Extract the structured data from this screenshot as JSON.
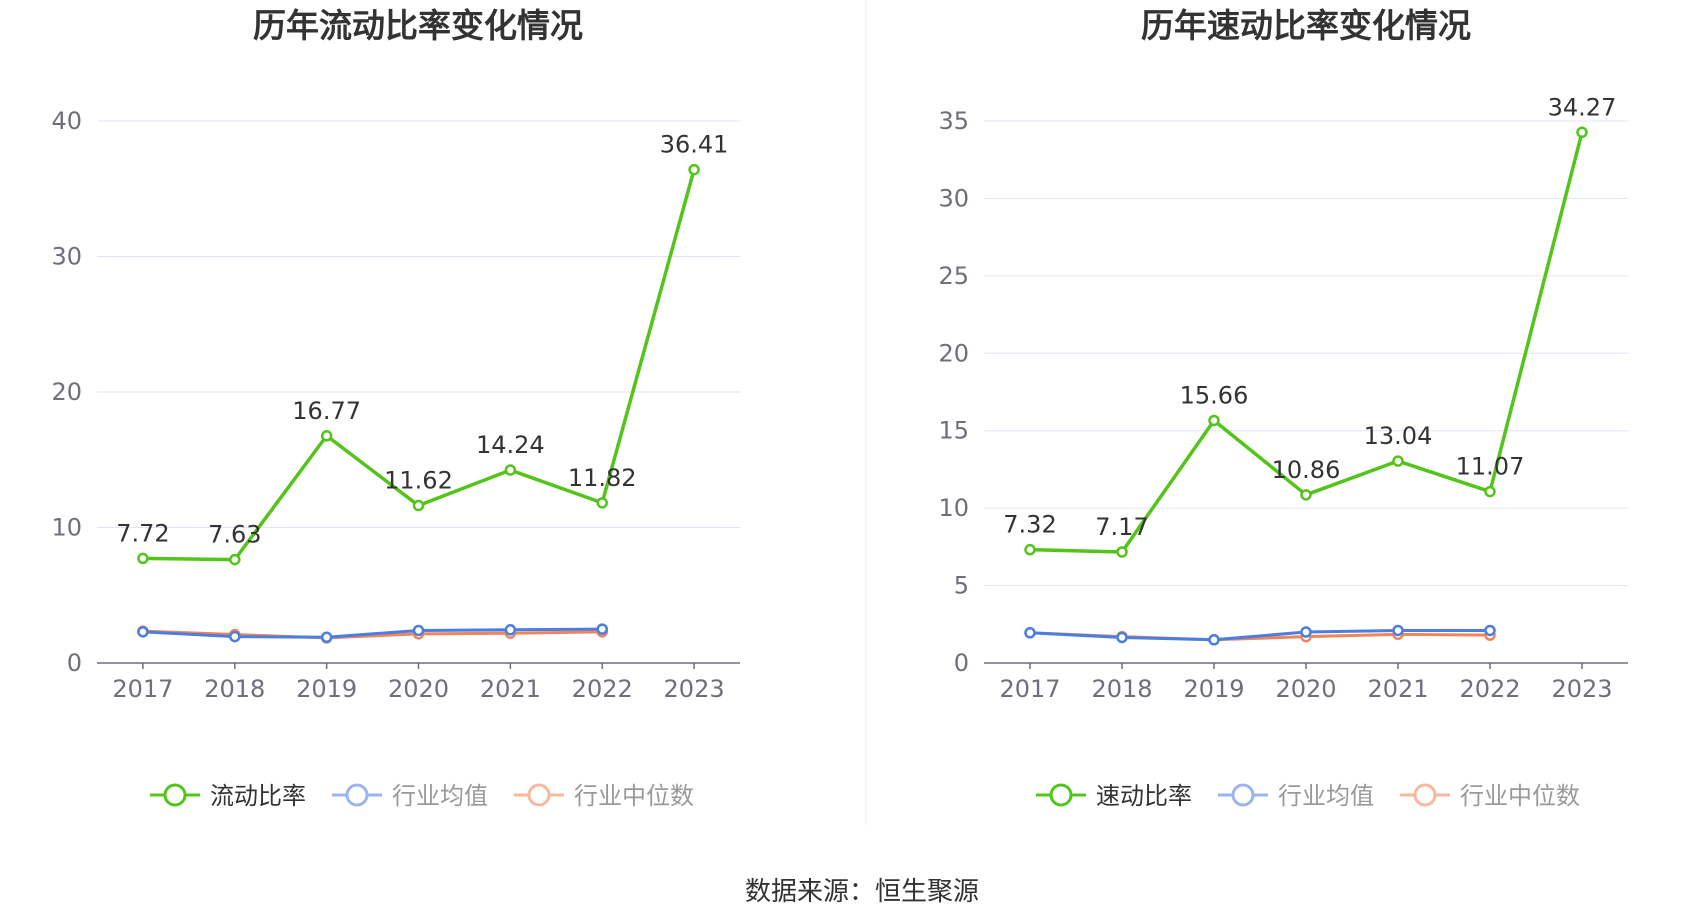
{
  "source": "数据来源：恒生聚源",
  "chart_data": [
    {
      "type": "line",
      "title": "历年流动比率变化情况",
      "categories": [
        "2017",
        "2018",
        "2019",
        "2020",
        "2021",
        "2022",
        "2023"
      ],
      "ylim": [
        0,
        40
      ],
      "yticks": [
        0,
        10,
        20,
        30,
        40
      ],
      "grid": true,
      "legend_position": "bottom-center",
      "series": [
        {
          "name": "流动比率",
          "color": "#52c41a",
          "values": [
            7.72,
            7.63,
            16.77,
            11.62,
            14.24,
            11.82,
            36.41
          ],
          "labels": [
            "7.72",
            "7.63",
            "16.77",
            "11.62",
            "14.24",
            "11.82",
            "36.41"
          ]
        },
        {
          "name": "行业均值",
          "color": "#4a7ee0",
          "values": [
            2.3,
            1.95,
            1.9,
            2.4,
            2.45,
            2.5,
            null
          ]
        },
        {
          "name": "行业中位数",
          "color": "#f2845c",
          "values": [
            2.35,
            2.1,
            1.85,
            2.15,
            2.2,
            2.3,
            null
          ]
        }
      ]
    },
    {
      "type": "line",
      "title": "历年速动比率变化情况",
      "categories": [
        "2017",
        "2018",
        "2019",
        "2020",
        "2021",
        "2022",
        "2023"
      ],
      "ylim": [
        0,
        35
      ],
      "yticks": [
        0,
        5,
        10,
        15,
        20,
        25,
        30,
        35
      ],
      "grid": true,
      "legend_position": "bottom-center",
      "series": [
        {
          "name": "速动比率",
          "color": "#52c41a",
          "values": [
            7.32,
            7.17,
            15.66,
            10.86,
            13.04,
            11.07,
            34.27
          ],
          "labels": [
            "7.32",
            "7.17",
            "15.66",
            "10.86",
            "13.04",
            "11.07",
            "34.27"
          ]
        },
        {
          "name": "行业均值",
          "color": "#4a7ee0",
          "values": [
            1.95,
            1.65,
            1.5,
            2.0,
            2.1,
            2.1,
            null
          ]
        },
        {
          "name": "行业中位数",
          "color": "#f2845c",
          "values": [
            1.95,
            1.7,
            1.5,
            1.7,
            1.85,
            1.8,
            null
          ]
        }
      ]
    }
  ]
}
